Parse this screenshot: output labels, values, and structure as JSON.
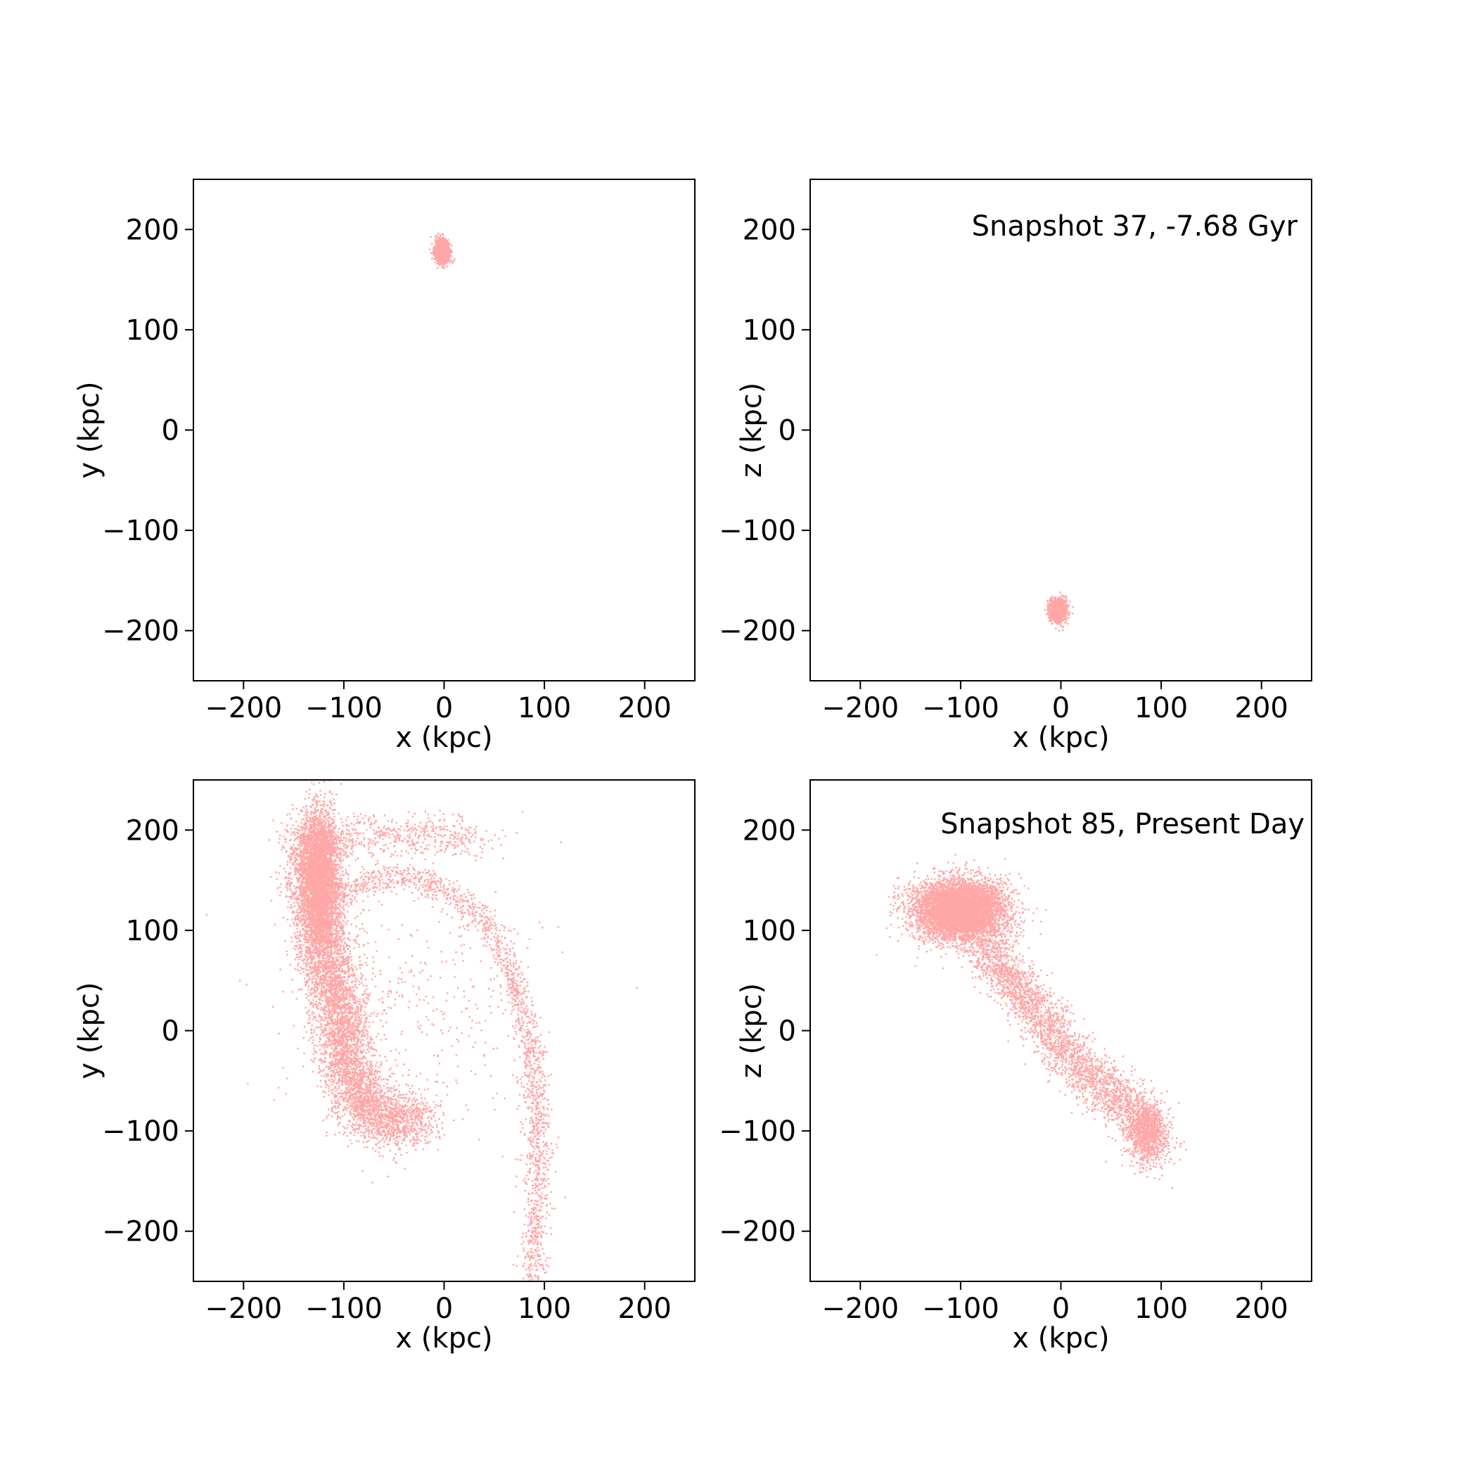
{
  "chart_data": [
    {
      "type": "scatter",
      "panel": "top-left",
      "xlabel": "x (kpc)",
      "ylabel": "y (kpc)",
      "xlim": [
        -250,
        250
      ],
      "ylim": [
        -250,
        250
      ],
      "xticks": [
        -200,
        -100,
        0,
        100,
        200
      ],
      "yticks": [
        -200,
        -100,
        0,
        100,
        200
      ],
      "annotation": "",
      "color": "#ff0000",
      "clusters": [
        {
          "cx": -2,
          "cy": 178,
          "sx": 3.5,
          "sy": 5.5,
          "n": 1400
        }
      ]
    },
    {
      "type": "scatter",
      "panel": "top-right",
      "xlabel": "x (kpc)",
      "ylabel": "z (kpc)",
      "xlim": [
        -250,
        250
      ],
      "ylim": [
        -250,
        250
      ],
      "xticks": [
        -200,
        -100,
        0,
        100,
        200
      ],
      "yticks": [
        -200,
        -100,
        0,
        100,
        200
      ],
      "annotation": "Snapshot 37, -7.68 Gyr",
      "color": "#ff0000",
      "clusters": [
        {
          "cx": -3,
          "cy": -180,
          "sx": 4,
          "sy": 5.5,
          "n": 1400
        }
      ]
    },
    {
      "type": "scatter",
      "panel": "bottom-left",
      "xlabel": "x (kpc)",
      "ylabel": "y (kpc)",
      "xlim": [
        -250,
        250
      ],
      "ylim": [
        -250,
        250
      ],
      "xticks": [
        -200,
        -100,
        0,
        100,
        200
      ],
      "yticks": [
        -200,
        -100,
        0,
        100,
        200
      ],
      "annotation": "",
      "color": "#ff0000",
      "paths": [
        {
          "points": [
            [
              -130,
              200
            ],
            [
              -130,
              160
            ],
            [
              -125,
              120
            ],
            [
              -118,
              80
            ],
            [
              -110,
              40
            ],
            [
              -102,
              0
            ],
            [
              -95,
              -40
            ],
            [
              -85,
              -70
            ],
            [
              -70,
              -85
            ],
            [
              -45,
              -90
            ],
            [
              -25,
              -90
            ]
          ],
          "width": 14,
          "n": 6000
        },
        {
          "points": [
            [
              -110,
              135
            ],
            [
              -80,
              150
            ],
            [
              -40,
              155
            ],
            [
              0,
              140
            ],
            [
              30,
              120
            ],
            [
              55,
              90
            ],
            [
              70,
              50
            ],
            [
              80,
              10
            ],
            [
              88,
              -30
            ],
            [
              92,
              -80
            ],
            [
              95,
              -130
            ],
            [
              93,
              -180
            ],
            [
              88,
              -250
            ]
          ],
          "width": 7,
          "n": 1700
        },
        {
          "points": [
            [
              -120,
              190
            ],
            [
              -80,
              195
            ],
            [
              -40,
              195
            ],
            [
              0,
              195
            ],
            [
              40,
              190
            ]
          ],
          "width": 10,
          "n": 500
        }
      ],
      "clusters": [
        {
          "cx": -125,
          "cy": 150,
          "sx": 10,
          "sy": 35,
          "n": 3000
        },
        {
          "cx": -30,
          "cy": 20,
          "sx": 60,
          "sy": 70,
          "n": 400
        }
      ]
    },
    {
      "type": "scatter",
      "panel": "bottom-right",
      "xlabel": "x (kpc)",
      "ylabel": "z (kpc)",
      "xlim": [
        -250,
        250
      ],
      "ylim": [
        -250,
        250
      ],
      "xticks": [
        -200,
        -100,
        0,
        100,
        200
      ],
      "yticks": [
        -200,
        -100,
        0,
        100,
        200
      ],
      "annotation": "Snapshot 85, Present Day",
      "color": "#ff0000",
      "paths": [
        {
          "points": [
            [
              -80,
              90
            ],
            [
              -50,
              50
            ],
            [
              -25,
              20
            ],
            [
              0,
              -15
            ],
            [
              30,
              -45
            ],
            [
              60,
              -70
            ],
            [
              85,
              -95
            ],
            [
              95,
              -120
            ]
          ],
          "width": 12,
          "n": 3000
        }
      ],
      "clusters": [
        {
          "cx": -100,
          "cy": 120,
          "sx": 22,
          "sy": 15,
          "n": 6000
        },
        {
          "cx": 85,
          "cy": -100,
          "sx": 9,
          "sy": 16,
          "n": 700
        }
      ]
    }
  ]
}
